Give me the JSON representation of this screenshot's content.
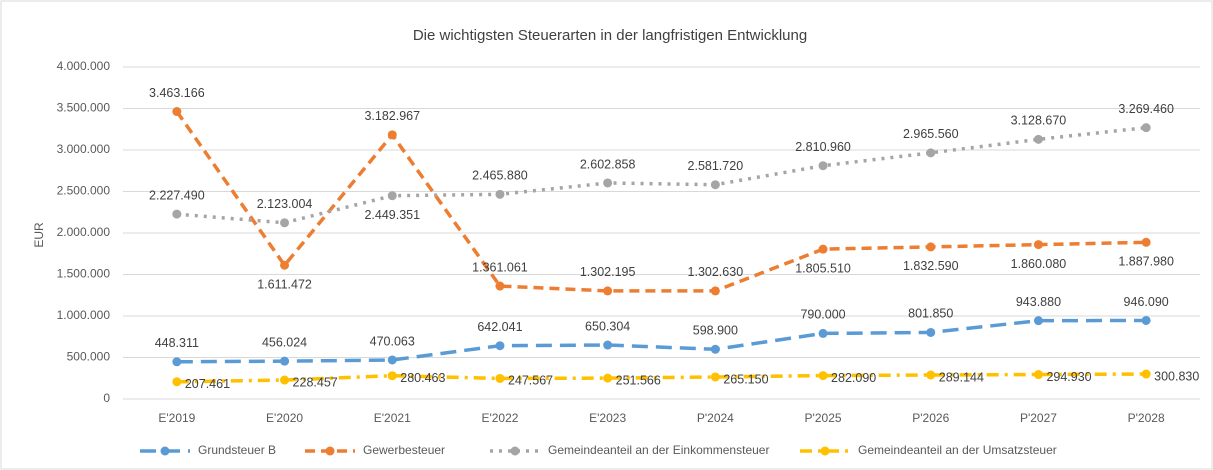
{
  "chart_data": {
    "type": "line",
    "title": "Die wichtigsten Steuerarten in der langfristigen Entwicklung",
    "y_label": "EUR",
    "categories": [
      "E'2019",
      "E'2020",
      "E'2021",
      "E'2022",
      "E'2023",
      "P'2024",
      "P'2025",
      "P'2026",
      "P'2027",
      "P'2028"
    ],
    "ylim": [
      0,
      4000000
    ],
    "yticks": [
      0,
      {
        "value": 500000,
        "label": "500.000"
      },
      {
        "value": 1000000,
        "label": "1.000.000"
      },
      {
        "value": 1500000,
        "label": "1.500.000"
      },
      {
        "value": 2000000,
        "label": "2.000.000"
      },
      {
        "value": 2500000,
        "label": "2.500.000"
      },
      {
        "value": 3000000,
        "label": "3.000.000"
      },
      {
        "value": 3500000,
        "label": "3.500.000"
      },
      {
        "value": 4000000,
        "label": "4.000.000"
      }
    ],
    "grid": true,
    "legend": "bottom",
    "series": [
      {
        "name": "Grundsteuer B",
        "color": "#5b9bd5",
        "values": [
          448311,
          456024,
          470063,
          642041,
          650304,
          598900,
          790000,
          801850,
          943880,
          946090
        ],
        "value_labels": [
          "448.311",
          "456.024",
          "470.063",
          "642.041",
          "650.304",
          "598.900",
          "790.000",
          "801.850",
          "943.880",
          "946.090"
        ]
      },
      {
        "name": "Gewerbesteuer",
        "color": "#ed7d31",
        "values": [
          3463166,
          1611472,
          3182967,
          1361061,
          1302195,
          1302630,
          1805510,
          1832590,
          1860080,
          1887980
        ],
        "value_labels": [
          "3.463.166",
          "1.611.472",
          "3.182.967",
          "1.361.061",
          "1.302.195",
          "1.302.630",
          "1.805.510",
          "1.832.590",
          "1.860.080",
          "1.887.980"
        ]
      },
      {
        "name": "Gemeindeanteil an der Einkommensteuer",
        "color": "#a5a5a5",
        "values": [
          2227490,
          2123004,
          2449351,
          2465880,
          2602858,
          2581720,
          2810960,
          2965560,
          3128670,
          3269460
        ],
        "value_labels": [
          "2.227.490",
          "2.123.004",
          "2.449.351",
          "2.465.880",
          "2.602.858",
          "2.581.720",
          "2.810.960",
          "2.965.560",
          "3.128.670",
          "3.269.460"
        ]
      },
      {
        "name": "Gemeindeanteil an der Umsatzsteuer",
        "color": "#ffc000",
        "values": [
          207461,
          228457,
          280463,
          247567,
          251566,
          265150,
          282090,
          289144,
          294930,
          300830
        ],
        "value_labels": [
          "207.461",
          "228.457",
          "280.463",
          "247.567",
          "251.566",
          "265.150",
          "282.090",
          "289.144",
          "294.930",
          "300.830"
        ]
      }
    ]
  }
}
